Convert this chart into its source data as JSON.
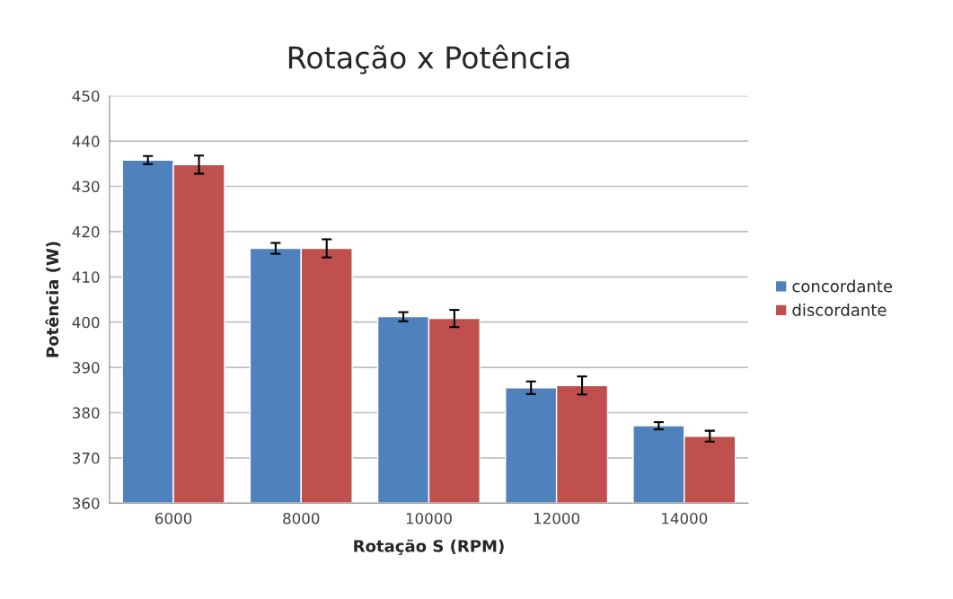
{
  "chart_data": {
    "type": "bar",
    "title": "Rotação x Potência",
    "xlabel": "Rotação S (RPM)",
    "ylabel": "Potência (W)",
    "categories": [
      "6000",
      "8000",
      "10000",
      "12000",
      "14000"
    ],
    "series": [
      {
        "name": "concordante",
        "color": "#4f81bd",
        "values": [
          435.8,
          416.3,
          401.2,
          385.5,
          377.1
        ],
        "errors": [
          0.9,
          1.2,
          1.0,
          1.4,
          0.8
        ]
      },
      {
        "name": "discordante",
        "color": "#c0504d",
        "values": [
          434.8,
          416.3,
          400.8,
          386.0,
          374.8
        ],
        "errors": [
          2.0,
          2.0,
          1.9,
          2.0,
          1.2
        ]
      }
    ],
    "ylim": [
      360,
      450
    ],
    "yticks": [
      360,
      370,
      380,
      390,
      400,
      410,
      420,
      430,
      440,
      450
    ],
    "grid": "y",
    "legend": "right"
  }
}
